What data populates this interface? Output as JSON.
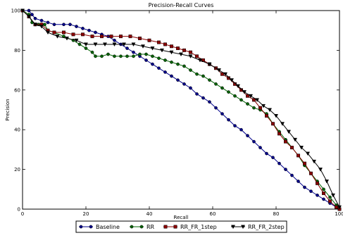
{
  "chart_data": {
    "type": "line",
    "title": "Precision-Recall Curves",
    "xlabel": "Recall",
    "ylabel": "Precision",
    "xlim": [
      0,
      100
    ],
    "ylim": [
      0,
      100
    ],
    "xticks": [
      "0",
      "20",
      "40",
      "60",
      "80",
      "100"
    ],
    "yticks": [
      "0",
      "20",
      "40",
      "60",
      "80",
      "100"
    ],
    "grid": false,
    "legend_position": "bottom-center",
    "series": [
      {
        "name": "Baseline",
        "color": "#00008b",
        "marker": "circle",
        "points": [
          [
            0,
            100
          ],
          [
            2,
            100
          ],
          [
            3,
            98
          ],
          [
            4,
            96
          ],
          [
            6,
            95
          ],
          [
            8,
            94
          ],
          [
            10,
            93
          ],
          [
            13,
            93
          ],
          [
            15,
            93
          ],
          [
            17,
            92
          ],
          [
            19,
            91
          ],
          [
            21,
            90
          ],
          [
            23,
            89
          ],
          [
            25,
            88
          ],
          [
            27,
            87
          ],
          [
            29,
            85
          ],
          [
            31,
            83
          ],
          [
            33,
            81
          ],
          [
            35,
            79
          ],
          [
            37,
            77
          ],
          [
            39,
            75
          ],
          [
            41,
            73
          ],
          [
            43,
            71
          ],
          [
            45,
            69
          ],
          [
            47,
            67
          ],
          [
            49,
            65
          ],
          [
            51,
            63
          ],
          [
            53,
            61
          ],
          [
            55,
            58
          ],
          [
            57,
            56
          ],
          [
            59,
            54
          ],
          [
            61,
            51
          ],
          [
            63,
            48
          ],
          [
            65,
            45
          ],
          [
            67,
            42
          ],
          [
            69,
            40
          ],
          [
            71,
            37
          ],
          [
            73,
            34
          ],
          [
            75,
            31
          ],
          [
            77,
            28
          ],
          [
            79,
            26
          ],
          [
            81,
            23
          ],
          [
            83,
            20
          ],
          [
            85,
            17
          ],
          [
            87,
            14
          ],
          [
            89,
            11
          ],
          [
            91,
            9
          ],
          [
            93,
            7
          ],
          [
            95,
            5
          ],
          [
            97,
            3
          ],
          [
            99,
            1
          ],
          [
            100,
            0
          ]
        ]
      },
      {
        "name": "RR",
        "color": "#006400",
        "marker": "circle",
        "points": [
          [
            0,
            100
          ],
          [
            2,
            98
          ],
          [
            3,
            94
          ],
          [
            5,
            93
          ],
          [
            7,
            93
          ],
          [
            8,
            90
          ],
          [
            10,
            89
          ],
          [
            13,
            87
          ],
          [
            16,
            85
          ],
          [
            18,
            83
          ],
          [
            20,
            81
          ],
          [
            22,
            79
          ],
          [
            23,
            77
          ],
          [
            25,
            77
          ],
          [
            27,
            78
          ],
          [
            29,
            77
          ],
          [
            31,
            77
          ],
          [
            33,
            77
          ],
          [
            35,
            77
          ],
          [
            37,
            78
          ],
          [
            39,
            78
          ],
          [
            41,
            77
          ],
          [
            43,
            76
          ],
          [
            45,
            75
          ],
          [
            47,
            74
          ],
          [
            49,
            73
          ],
          [
            51,
            72
          ],
          [
            53,
            70
          ],
          [
            55,
            68
          ],
          [
            57,
            67
          ],
          [
            59,
            65
          ],
          [
            61,
            63
          ],
          [
            63,
            61
          ],
          [
            65,
            59
          ],
          [
            67,
            57
          ],
          [
            69,
            55
          ],
          [
            71,
            53
          ],
          [
            73,
            51
          ],
          [
            75,
            50
          ],
          [
            77,
            48
          ],
          [
            79,
            43
          ],
          [
            81,
            39
          ],
          [
            83,
            35
          ],
          [
            85,
            31
          ],
          [
            87,
            27
          ],
          [
            89,
            22
          ],
          [
            91,
            18
          ],
          [
            93,
            14
          ],
          [
            95,
            10
          ],
          [
            97,
            6
          ],
          [
            99,
            2
          ],
          [
            100,
            0
          ]
        ]
      },
      {
        "name": "RR_FR_1step",
        "color": "#8b0000",
        "marker": "square",
        "points": [
          [
            0,
            100
          ],
          [
            2,
            97
          ],
          [
            4,
            93
          ],
          [
            6,
            93
          ],
          [
            8,
            90
          ],
          [
            10,
            89
          ],
          [
            13,
            89
          ],
          [
            16,
            88
          ],
          [
            19,
            88
          ],
          [
            22,
            87
          ],
          [
            25,
            87
          ],
          [
            28,
            87
          ],
          [
            31,
            87
          ],
          [
            34,
            87
          ],
          [
            37,
            86
          ],
          [
            40,
            85
          ],
          [
            43,
            84
          ],
          [
            45,
            83
          ],
          [
            47,
            82
          ],
          [
            49,
            81
          ],
          [
            51,
            80
          ],
          [
            53,
            79
          ],
          [
            55,
            77
          ],
          [
            57,
            75
          ],
          [
            59,
            73
          ],
          [
            61,
            71
          ],
          [
            63,
            68
          ],
          [
            65,
            66
          ],
          [
            67,
            63
          ],
          [
            69,
            60
          ],
          [
            71,
            57
          ],
          [
            73,
            55
          ],
          [
            75,
            51
          ],
          [
            77,
            47
          ],
          [
            79,
            43
          ],
          [
            81,
            38
          ],
          [
            83,
            34
          ],
          [
            85,
            31
          ],
          [
            87,
            27
          ],
          [
            89,
            23
          ],
          [
            91,
            18
          ],
          [
            93,
            13
          ],
          [
            95,
            8
          ],
          [
            97,
            4
          ],
          [
            99,
            1
          ],
          [
            100,
            0
          ]
        ]
      },
      {
        "name": "RR_FR_2step",
        "color": "#000000",
        "marker": "triangle-down",
        "points": [
          [
            0,
            100
          ],
          [
            2,
            97
          ],
          [
            4,
            93
          ],
          [
            6,
            92
          ],
          [
            8,
            89
          ],
          [
            11,
            87
          ],
          [
            14,
            86
          ],
          [
            17,
            85
          ],
          [
            20,
            83
          ],
          [
            23,
            83
          ],
          [
            26,
            83
          ],
          [
            29,
            83
          ],
          [
            32,
            83
          ],
          [
            35,
            83
          ],
          [
            38,
            82
          ],
          [
            41,
            81
          ],
          [
            44,
            80
          ],
          [
            47,
            79
          ],
          [
            50,
            78
          ],
          [
            53,
            77
          ],
          [
            56,
            75
          ],
          [
            59,
            73
          ],
          [
            62,
            70
          ],
          [
            64,
            68
          ],
          [
            66,
            65
          ],
          [
            68,
            62
          ],
          [
            70,
            59
          ],
          [
            72,
            57
          ],
          [
            74,
            55
          ],
          [
            76,
            52
          ],
          [
            78,
            50
          ],
          [
            80,
            47
          ],
          [
            82,
            43
          ],
          [
            84,
            39
          ],
          [
            86,
            35
          ],
          [
            88,
            31
          ],
          [
            90,
            28
          ],
          [
            92,
            24
          ],
          [
            94,
            20
          ],
          [
            96,
            14
          ],
          [
            98,
            7
          ],
          [
            100,
            1
          ]
        ]
      }
    ]
  }
}
